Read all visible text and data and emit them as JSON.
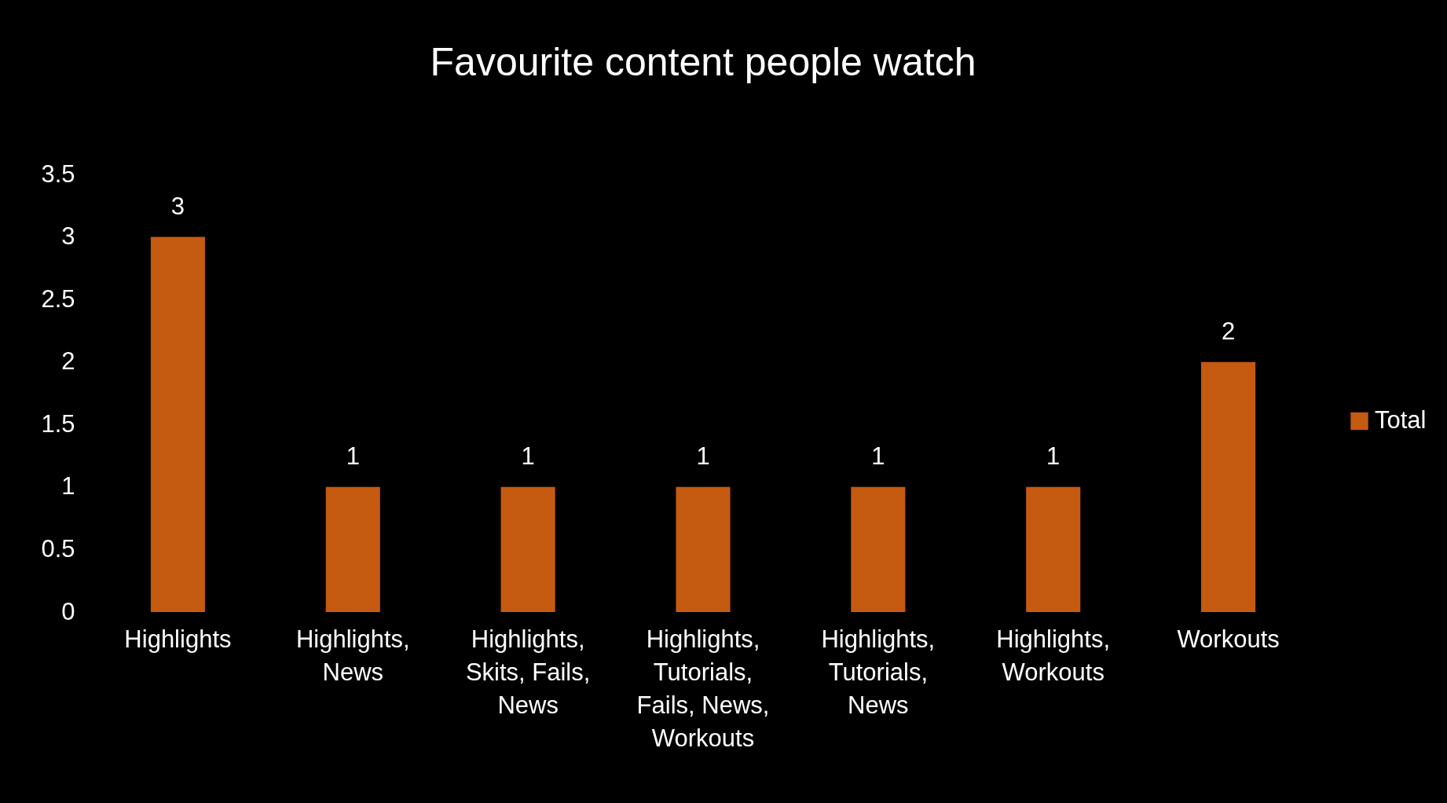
{
  "chart_data": {
    "type": "bar",
    "title": "Favourite content people watch",
    "categories": [
      "Highlights",
      "Highlights, News",
      "Highlights, Skits, Fails, News",
      "Highlights, Tutorials, Fails, News, Workouts",
      "Highlights, Tutorials, News",
      "Highlights, Workouts",
      "Workouts"
    ],
    "series": [
      {
        "name": "Total",
        "color": "#c55a11",
        "values": [
          3,
          1,
          1,
          1,
          1,
          1,
          2
        ]
      }
    ],
    "ylim": [
      0,
      3.5
    ],
    "yticks": [
      0,
      0.5,
      1,
      1.5,
      2,
      2.5,
      3,
      3.5
    ],
    "data_labels": true,
    "legend": "right",
    "grid": false
  }
}
